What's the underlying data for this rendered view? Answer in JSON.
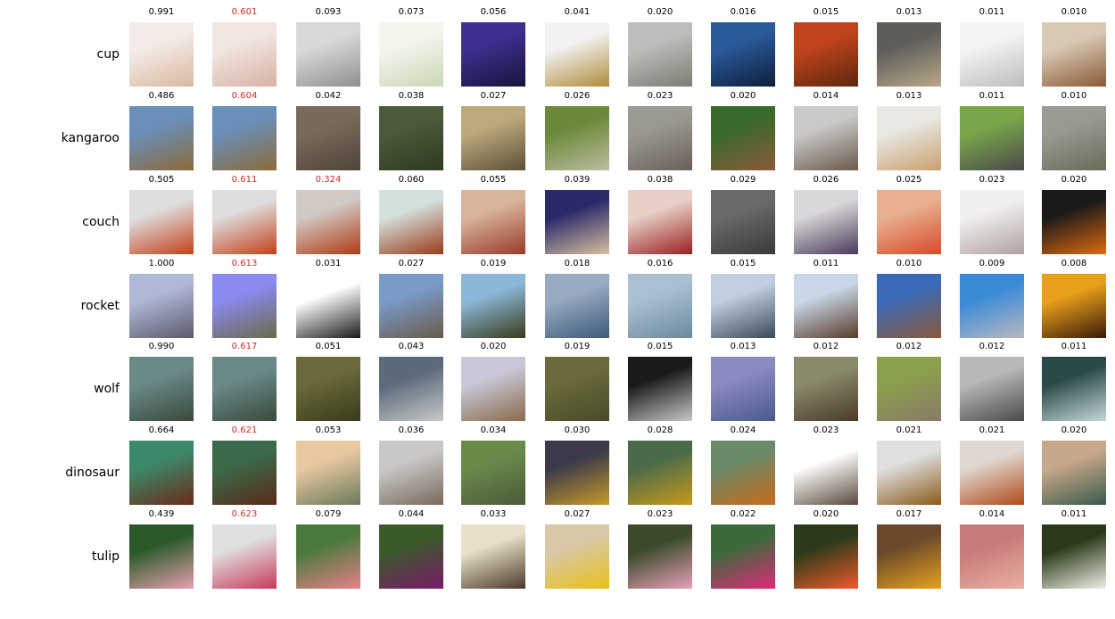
{
  "rows": [
    {
      "label": "cup",
      "scores": [
        "0.991",
        "0.601",
        "0.093",
        "0.073",
        "0.056",
        "0.041",
        "0.020",
        "0.016",
        "0.015",
        "0.013",
        "0.011",
        "0.010"
      ],
      "flagged": [
        1
      ],
      "colors": [
        [
          "#f4ece8",
          "#d9b9a0"
        ],
        [
          "#f1e6e0",
          "#d7b2a4"
        ],
        [
          "#d9d9d9",
          "#8f8f8f"
        ],
        [
          "#f5f5ee",
          "#c9d7b6"
        ],
        [
          "#3d2f8f",
          "#16143a"
        ],
        [
          "#f2f2f2",
          "#b08b3b"
        ],
        [
          "#bdbdbd",
          "#7d7d73"
        ],
        [
          "#2a5a9a",
          "#0e1e3a"
        ],
        [
          "#c0441b",
          "#5c2710"
        ],
        [
          "#5d5d59",
          "#b8a88a"
        ],
        [
          "#f4f4f4",
          "#bdbdbd"
        ],
        [
          "#d8c9b5",
          "#8a5a36"
        ]
      ]
    },
    {
      "label": "kangaroo",
      "scores": [
        "0.486",
        "0.604",
        "0.042",
        "0.038",
        "0.027",
        "0.026",
        "0.023",
        "0.020",
        "0.014",
        "0.013",
        "0.011",
        "0.010"
      ],
      "flagged": [
        1
      ],
      "colors": [
        [
          "#6a8fb8",
          "#8b6a3a"
        ],
        [
          "#6a8fb8",
          "#8b6a3a"
        ],
        [
          "#7a6a5a",
          "#4f4438"
        ],
        [
          "#4a5a3a",
          "#2e3a22"
        ],
        [
          "#bca97b",
          "#5c5138"
        ],
        [
          "#6a8a3a",
          "#bcbca0"
        ],
        [
          "#9a9a92",
          "#6a6058"
        ],
        [
          "#3a6a2a",
          "#8a5a3a"
        ],
        [
          "#c9c9c9",
          "#6a5a4a"
        ],
        [
          "#e9e9e4",
          "#c9a070"
        ],
        [
          "#7aa64a",
          "#4a4a4a"
        ],
        [
          "#9a9a92",
          "#6a6a5a"
        ]
      ]
    },
    {
      "label": "couch",
      "scores": [
        "0.505",
        "0.611",
        "0.324",
        "0.060",
        "0.055",
        "0.039",
        "0.038",
        "0.029",
        "0.026",
        "0.025",
        "0.023",
        "0.020"
      ],
      "flagged": [
        1,
        2
      ],
      "colors": [
        [
          "#dedede",
          "#c4401a"
        ],
        [
          "#dedede",
          "#c4401a"
        ],
        [
          "#d0c9c4",
          "#b03a14"
        ],
        [
          "#d4e0dc",
          "#9a3a1a"
        ],
        [
          "#d8b49a",
          "#9a3a2a"
        ],
        [
          "#2a2a6a",
          "#d8c0a0"
        ],
        [
          "#e8d0c8",
          "#9a2020"
        ],
        [
          "#6a6a6a",
          "#3a3a3a"
        ],
        [
          "#d8d8d8",
          "#4a3a5a"
        ],
        [
          "#e8b090",
          "#d84a2a"
        ],
        [
          "#f0f0f0",
          "#b0a0a0"
        ],
        [
          "#1a1a1a",
          "#e06a10"
        ]
      ]
    },
    {
      "label": "rocket",
      "scores": [
        "1.000",
        "0.613",
        "0.031",
        "0.027",
        "0.019",
        "0.018",
        "0.016",
        "0.015",
        "0.011",
        "0.010",
        "0.009",
        "0.008"
      ],
      "flagged": [
        1
      ],
      "colors": [
        [
          "#b0b8d8",
          "#5a5a6a"
        ],
        [
          "#8a8af0",
          "#6a6a4a"
        ],
        [
          "#ffffff",
          "#1a1a1a"
        ],
        [
          "#7a9ac8",
          "#6a5a4a"
        ],
        [
          "#8ab8d8",
          "#3a3a1a"
        ],
        [
          "#9aaac0",
          "#3a5a7a"
        ],
        [
          "#aac0d0",
          "#6a8aa0"
        ],
        [
          "#c0d0e0",
          "#3a4a5a"
        ],
        [
          "#c8d8e8",
          "#5a3a2a"
        ],
        [
          "#3a6ab8",
          "#8a5a3a"
        ],
        [
          "#3a8ad8",
          "#b8b8c0"
        ],
        [
          "#e8a01a",
          "#3a1a0a"
        ]
      ]
    },
    {
      "label": "wolf",
      "scores": [
        "0.990",
        "0.617",
        "0.051",
        "0.043",
        "0.020",
        "0.019",
        "0.015",
        "0.013",
        "0.012",
        "0.012",
        "0.012",
        "0.011"
      ],
      "flagged": [
        1
      ],
      "colors": [
        [
          "#6a8a8a",
          "#3a4a3a"
        ],
        [
          "#6a8a8a",
          "#3a4a3a"
        ],
        [
          "#6a6a3a",
          "#3a3a1a"
        ],
        [
          "#5a6a7a",
          "#c8c8c8"
        ],
        [
          "#c8c8d8",
          "#8a6a4a"
        ],
        [
          "#6a6a3a",
          "#4a4a2a"
        ],
        [
          "#1a1a1a",
          "#c8c8c8"
        ],
        [
          "#8a8ac0",
          "#4a5a8a"
        ],
        [
          "#8a8a6a",
          "#4a3a2a"
        ],
        [
          "#8aa04a",
          "#8a7a6a"
        ],
        [
          "#b8b8b8",
          "#4a4a4a"
        ],
        [
          "#2a4a4a",
          "#c8d8d8"
        ]
      ]
    },
    {
      "label": "dinosaur",
      "scores": [
        "0.664",
        "0.621",
        "0.053",
        "0.036",
        "0.034",
        "0.030",
        "0.028",
        "0.024",
        "0.023",
        "0.021",
        "0.021",
        "0.020"
      ],
      "flagged": [
        1
      ],
      "colors": [
        [
          "#3a8a6a",
          "#6a2a1a"
        ],
        [
          "#3a6a4a",
          "#5a2a1a"
        ],
        [
          "#e8c8a0",
          "#6a7a5a"
        ],
        [
          "#c8c8c8",
          "#7a6a5a"
        ],
        [
          "#6a8a4a",
          "#4a5a3a"
        ],
        [
          "#3a3a4a",
          "#c89a2a"
        ],
        [
          "#4a6a4a",
          "#c89a1a"
        ],
        [
          "#6a8a6a",
          "#c86a1a"
        ],
        [
          "#ffffff",
          "#5a4a3a"
        ],
        [
          "#e0e0e0",
          "#8a5a1a"
        ],
        [
          "#e0d8d0",
          "#b04a1a"
        ],
        [
          "#c8a88a",
          "#3a5a4a"
        ]
      ]
    },
    {
      "label": "tulip",
      "scores": [
        "0.439",
        "0.623",
        "0.079",
        "0.044",
        "0.033",
        "0.027",
        "0.023",
        "0.022",
        "0.020",
        "0.017",
        "0.014",
        "0.011"
      ],
      "flagged": [
        1
      ],
      "colors": [
        [
          "#2a5a2a",
          "#e8a0b0"
        ],
        [
          "#e0e0e0",
          "#c83a5a"
        ],
        [
          "#4a7a3a",
          "#e8808a"
        ],
        [
          "#3a5a2a",
          "#7a1a6a"
        ],
        [
          "#e8e0c8",
          "#4a3a2a"
        ],
        [
          "#d8c8a8",
          "#e8c01a"
        ],
        [
          "#3a4a2a",
          "#e8a0b8"
        ],
        [
          "#3a6a3a",
          "#e02a7a"
        ],
        [
          "#2a3a1a",
          "#f05a2a"
        ],
        [
          "#6a4a2a",
          "#e8a020"
        ],
        [
          "#c87a7a",
          "#e8b0a0"
        ],
        [
          "#2a3a1a",
          "#f0f0e8"
        ]
      ]
    }
  ]
}
